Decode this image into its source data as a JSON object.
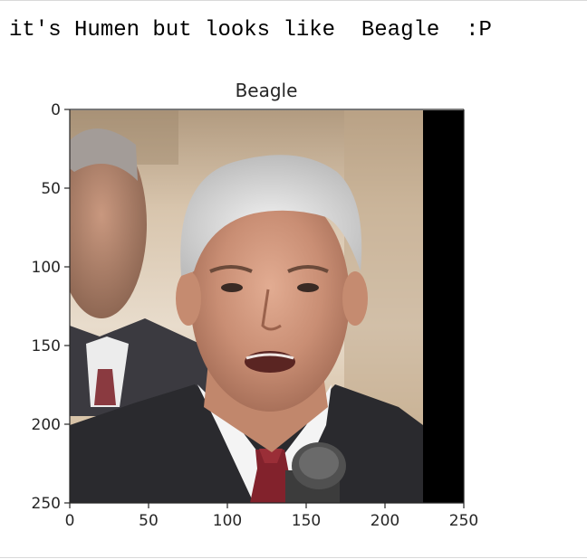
{
  "output": {
    "stdout_text": "it's Humen but looks like  Beagle  :P"
  },
  "figure": {
    "title": "Beagle",
    "image_description_icon": "photo-of-man-in-suit-icon",
    "x_ticks": [
      "0",
      "50",
      "100",
      "150",
      "200",
      "250"
    ],
    "y_ticks": [
      "0",
      "50",
      "100",
      "150",
      "200",
      "250"
    ],
    "x_range": [
      0,
      250
    ],
    "y_range": [
      0,
      250
    ],
    "image_extent": [
      0,
      224,
      0,
      250
    ],
    "colors": {
      "padding": "#000000",
      "axis": "#262626",
      "text": "#262626"
    }
  }
}
